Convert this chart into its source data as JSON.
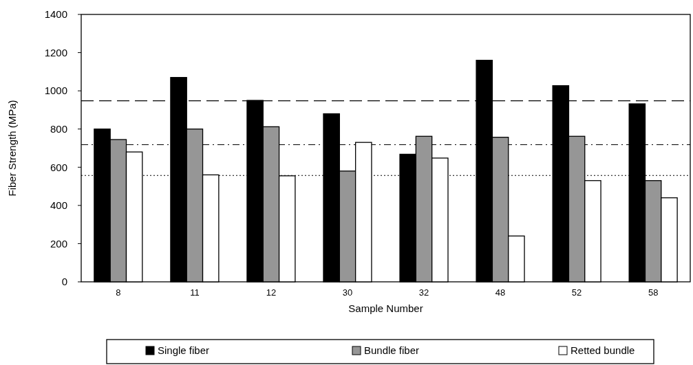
{
  "chart_data": {
    "type": "bar",
    "xlabel": "Sample Number",
    "ylabel": "Fiber Strength (MPa)",
    "categories": [
      "8",
      "11",
      "12",
      "30",
      "32",
      "48",
      "52",
      "58"
    ],
    "series": [
      {
        "name": "Single fiber",
        "color": "#000000",
        "values": [
          800,
          1070,
          950,
          880,
          668,
          1160,
          1027,
          932
        ]
      },
      {
        "name": "Bundle fiber",
        "color": "#969696",
        "values": [
          745,
          800,
          812,
          580,
          762,
          757,
          762,
          530
        ]
      },
      {
        "name": "Retted bundle",
        "color": "#ffffff",
        "values": [
          680,
          560,
          555,
          730,
          648,
          240,
          530,
          440
        ]
      }
    ],
    "ylim": [
      0,
      1400
    ],
    "yticks": [
      0,
      200,
      400,
      600,
      800,
      1000,
      1200,
      1400
    ],
    "ref_lines": [
      {
        "axis": "y",
        "value": 948,
        "color": "#000000",
        "line_style": "dashed"
      },
      {
        "axis": "y",
        "value": 718,
        "color": "#000000",
        "line_style": "dashdot"
      },
      {
        "axis": "y",
        "value": 557,
        "color": "#000000",
        "line_style": "dotted"
      }
    ],
    "grid": false,
    "legend": "bottom"
  }
}
